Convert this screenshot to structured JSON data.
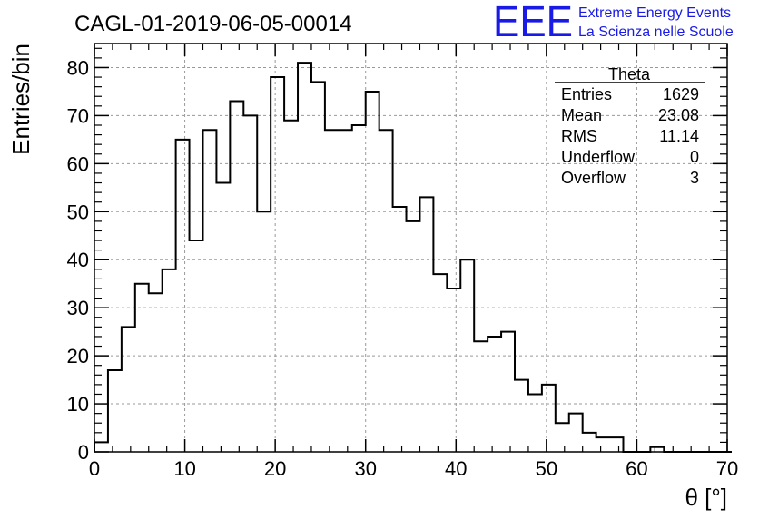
{
  "header": {
    "title": "CAGL-01-2019-06-05-00014",
    "logo_text": "EEE",
    "logo_line1": "Extreme Energy Events",
    "logo_line2": "La Scienza nelle Scuole",
    "logo_color": "#1a1ae6"
  },
  "stats": {
    "title": "Theta",
    "rows": [
      {
        "label": "Entries",
        "value": "1629"
      },
      {
        "label": "Mean",
        "value": "23.08"
      },
      {
        "label": "RMS",
        "value": "11.14"
      },
      {
        "label": "Underflow",
        "value": "0"
      },
      {
        "label": "Overflow",
        "value": "3"
      }
    ]
  },
  "chart_data": {
    "type": "bar",
    "title": "CAGL-01-2019-06-05-00014",
    "xlabel": "θ [°]",
    "ylabel": "Entries/bin",
    "xlim": [
      0,
      70
    ],
    "ylim": [
      0,
      85
    ],
    "xticks": [
      0,
      10,
      20,
      30,
      40,
      50,
      60,
      70
    ],
    "yticks": [
      0,
      10,
      20,
      30,
      40,
      50,
      60,
      70,
      80
    ],
    "grid": true,
    "bin_width": 1.5,
    "bin_start": 0,
    "values": [
      2,
      17,
      26,
      35,
      33,
      38,
      65,
      44,
      67,
      56,
      73,
      70,
      50,
      78,
      69,
      81,
      77,
      67,
      67,
      68,
      75,
      67,
      51,
      48,
      53,
      37,
      34,
      40,
      23,
      24,
      25,
      15,
      12,
      14,
      6,
      8,
      4,
      3,
      3,
      0,
      0,
      1,
      0,
      0,
      0,
      0,
      0
    ]
  }
}
